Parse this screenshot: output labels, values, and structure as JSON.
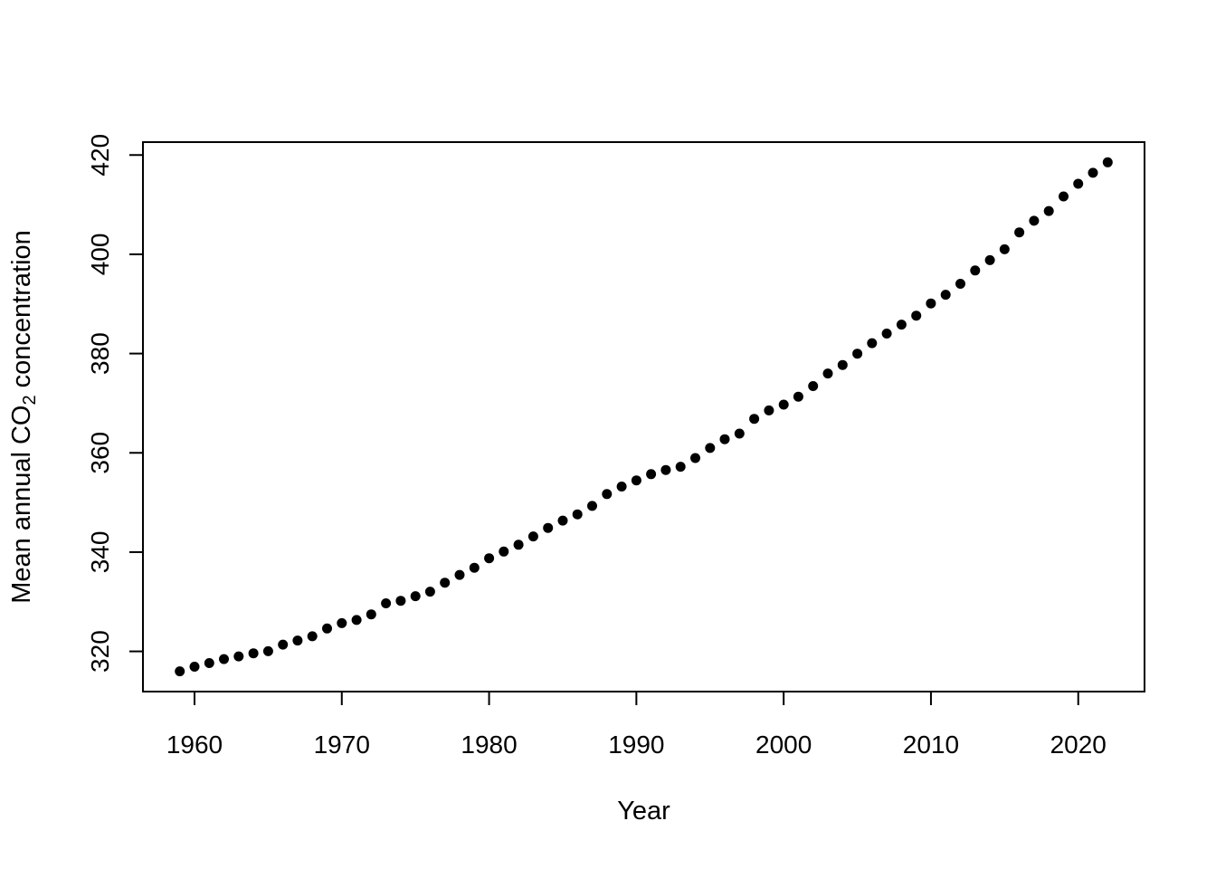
{
  "chart_data": {
    "type": "scatter",
    "title": "",
    "xlabel": "Year",
    "ylabel": "Mean annual CO₂ concentration",
    "ylabel_parts": {
      "prefix": "Mean annual CO",
      "subscript": "2",
      "suffix": " concentration"
    },
    "x": [
      1959,
      1960,
      1961,
      1962,
      1963,
      1964,
      1965,
      1966,
      1967,
      1968,
      1969,
      1970,
      1971,
      1972,
      1973,
      1974,
      1975,
      1976,
      1977,
      1978,
      1979,
      1980,
      1981,
      1982,
      1983,
      1984,
      1985,
      1986,
      1987,
      1988,
      1989,
      1990,
      1991,
      1992,
      1993,
      1994,
      1995,
      1996,
      1997,
      1998,
      1999,
      2000,
      2001,
      2002,
      2003,
      2004,
      2005,
      2006,
      2007,
      2008,
      2009,
      2010,
      2011,
      2012,
      2013,
      2014,
      2015,
      2016,
      2017,
      2018,
      2019,
      2020,
      2021,
      2022
    ],
    "y": [
      315.98,
      316.91,
      317.64,
      318.45,
      318.99,
      319.62,
      320.04,
      321.37,
      322.18,
      323.05,
      324.62,
      325.68,
      326.32,
      327.46,
      329.68,
      330.19,
      331.12,
      332.03,
      333.84,
      335.41,
      336.84,
      338.76,
      340.12,
      341.48,
      343.15,
      344.87,
      346.35,
      347.61,
      349.31,
      351.69,
      353.2,
      354.45,
      355.7,
      356.54,
      357.21,
      358.96,
      360.97,
      362.74,
      363.88,
      366.84,
      368.54,
      369.71,
      371.32,
      373.45,
      375.98,
      377.7,
      379.98,
      382.09,
      384.02,
      385.83,
      387.64,
      390.1,
      391.85,
      394.06,
      396.74,
      398.81,
      401.01,
      404.41,
      406.76,
      408.72,
      411.65,
      414.21,
      416.41,
      418.53
    ],
    "xlim": [
      1956.5,
      2024.5
    ],
    "ylim": [
      311.9,
      422.6
    ],
    "xticks": [
      1960,
      1970,
      1980,
      1990,
      2000,
      2010,
      2020
    ],
    "yticks": [
      320,
      340,
      360,
      380,
      400,
      420
    ],
    "grid": false,
    "legend_position": "none",
    "point_color": "#000000",
    "axis_color": "#000000",
    "background_color": "#ffffff"
  }
}
